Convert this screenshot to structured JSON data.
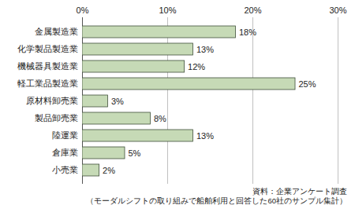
{
  "chart_data": {
    "type": "bar",
    "orientation": "horizontal",
    "categories": [
      "金属製造業",
      "化学製品製造業",
      "機械器具製造業",
      "軽工業品製造業",
      "原材料卸売業",
      "製品卸売業",
      "陸運業",
      "倉庫業",
      "小売業"
    ],
    "values": [
      18,
      13,
      12,
      25,
      3,
      8,
      13,
      5,
      2
    ],
    "value_labels": [
      "18%",
      "13%",
      "12%",
      "25%",
      "3%",
      "8%",
      "13%",
      "5%",
      "2%"
    ],
    "color": "#c6dab6",
    "xlim": [
      0,
      30
    ],
    "xticks": [
      {
        "value": 0,
        "label": "0%"
      },
      {
        "value": 10,
        "label": "10%"
      },
      {
        "value": 20,
        "label": "20%"
      },
      {
        "value": 30,
        "label": "30%"
      }
    ],
    "grid": true,
    "data_labels": true,
    "caption": [
      "資料：企業アンケート調査",
      "（モーダルシフトの取り組みで船舶利用と回答した60社のサンプル集計）"
    ]
  }
}
